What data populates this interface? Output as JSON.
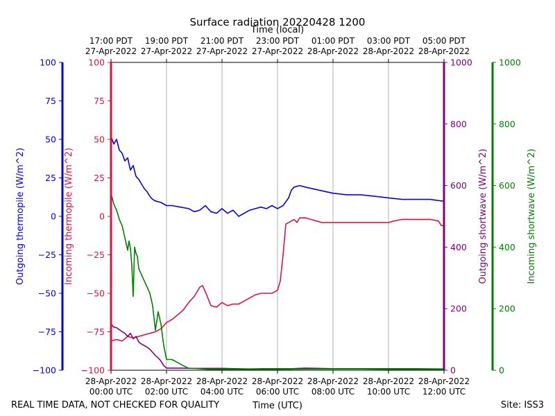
{
  "colors": {
    "outgoing_thermopile": "#0000ee",
    "incoming_thermopile": "#dc143c",
    "outgoing_shortwave": "#800080",
    "incoming_shortwave": "#008000",
    "grid": "#b0b0b0"
  },
  "footer": {
    "disclaimer": "REAL TIME DATA, NOT CHECKED FOR QUALITY",
    "site": "Site: ISS3"
  },
  "chart_data": {
    "type": "line",
    "title": "Surface radiation 20220428 1200",
    "xlabel": "Time (UTC)",
    "xlabel_top": "Time (local)",
    "xlim": [
      0,
      12
    ],
    "x_unit": "hours since 28-Apr-2022 00:00 UTC",
    "ticks_bottom": [
      {
        "x": 0,
        "line1": "28-Apr-2022",
        "line2": "00:00 UTC"
      },
      {
        "x": 2,
        "line1": "28-Apr-2022",
        "line2": "02:00 UTC"
      },
      {
        "x": 4,
        "line1": "28-Apr-2022",
        "line2": "04:00 UTC"
      },
      {
        "x": 6,
        "line1": "28-Apr-2022",
        "line2": "06:00 UTC"
      },
      {
        "x": 8,
        "line1": "28-Apr-2022",
        "line2": "08:00 UTC"
      },
      {
        "x": 10,
        "line1": "28-Apr-2022",
        "line2": "10:00 UTC"
      },
      {
        "x": 12,
        "line1": "28-Apr-2022",
        "line2": "12:00 UTC"
      }
    ],
    "ticks_top": [
      {
        "x": 0,
        "line1": "17:00 PDT",
        "line2": "27-Apr-2022"
      },
      {
        "x": 2,
        "line1": "19:00 PDT",
        "line2": "27-Apr-2022"
      },
      {
        "x": 4,
        "line1": "21:00 PDT",
        "line2": "27-Apr-2022"
      },
      {
        "x": 6,
        "line1": "23:00 PDT",
        "line2": "27-Apr-2022"
      },
      {
        "x": 8,
        "line1": "01:00 PDT",
        "line2": "28-Apr-2022"
      },
      {
        "x": 10,
        "line1": "03:00 PDT",
        "line2": "28-Apr-2022"
      },
      {
        "x": 12,
        "line1": "05:00 PDT",
        "line2": "28-Apr-2022"
      }
    ],
    "axes": [
      {
        "id": "outgoing_thermopile",
        "label": "Outgoing thermopile (W/m^2)",
        "ylim": [
          -100,
          100
        ],
        "ticks": [
          -100,
          -75,
          -50,
          -25,
          0,
          25,
          50,
          75,
          100
        ]
      },
      {
        "id": "incoming_thermopile",
        "label": "Incoming thermopile (W/m^2)",
        "ylim": [
          -100,
          100
        ],
        "ticks": [
          -100,
          -75,
          -50,
          -25,
          0,
          25,
          50,
          75,
          100
        ]
      },
      {
        "id": "outgoing_shortwave",
        "label": "Outgoing shortwave (W/m^2)",
        "ylim": [
          0,
          1000
        ],
        "ticks": [
          0,
          200,
          400,
          600,
          800,
          1000
        ]
      },
      {
        "id": "incoming_shortwave",
        "label": "Incoming shortwave (W/m^2)",
        "ylim": [
          0,
          1000
        ],
        "ticks": [
          0,
          200,
          400,
          600,
          800,
          1000
        ]
      }
    ],
    "series": [
      {
        "name": "Outgoing thermopile",
        "axis": "outgoing_thermopile",
        "x": [
          0,
          0.1,
          0.2,
          0.3,
          0.4,
          0.5,
          0.6,
          0.7,
          0.8,
          0.9,
          1.0,
          1.1,
          1.2,
          1.3,
          1.4,
          1.5,
          1.6,
          1.8,
          2.0,
          2.2,
          2.5,
          2.8,
          3.0,
          3.2,
          3.4,
          3.6,
          3.8,
          4.0,
          4.2,
          4.4,
          4.6,
          4.8,
          5.0,
          5.2,
          5.4,
          5.6,
          5.8,
          6.0,
          6.2,
          6.4,
          6.5,
          6.6,
          6.8,
          7.0,
          7.5,
          8.0,
          8.5,
          9.0,
          9.5,
          10.0,
          10.5,
          11.0,
          11.5,
          11.9,
          12.0
        ],
        "values": [
          52,
          47,
          50,
          43,
          41,
          36,
          38,
          30,
          33,
          26,
          24,
          21,
          18,
          16,
          13,
          11,
          10,
          9,
          7,
          7,
          6,
          5,
          3,
          4,
          7,
          3,
          2,
          5,
          2,
          4,
          0,
          2,
          4,
          5,
          6,
          5,
          7,
          5,
          7,
          12,
          17,
          19,
          20,
          19,
          17,
          15,
          14,
          14,
          13,
          12,
          11,
          11,
          11,
          10,
          10
        ]
      },
      {
        "name": "Incoming thermopile",
        "axis": "incoming_thermopile",
        "x": [
          0,
          0.2,
          0.4,
          0.6,
          0.8,
          1.0,
          1.2,
          1.4,
          1.6,
          1.8,
          2.0,
          2.2,
          2.4,
          2.6,
          2.8,
          3.0,
          3.2,
          3.3,
          3.4,
          3.6,
          3.8,
          4.0,
          4.2,
          4.4,
          4.6,
          4.8,
          5.0,
          5.2,
          5.4,
          5.6,
          5.8,
          6.0,
          6.1,
          6.2,
          6.3,
          6.4,
          6.5,
          6.6,
          6.7,
          6.8,
          7.0,
          7.2,
          7.4,
          7.6,
          8.0,
          8.5,
          9.0,
          9.5,
          10.0,
          10.2,
          10.5,
          11.0,
          11.5,
          11.8,
          11.9,
          12.0
        ],
        "values": [
          -81,
          -80,
          -81,
          -78,
          -79,
          -78,
          -77,
          -76,
          -75,
          -73,
          -69,
          -67,
          -64,
          -61,
          -56,
          -52,
          -46,
          -45,
          -49,
          -58,
          -59,
          -56,
          -58,
          -57,
          -57,
          -55,
          -53,
          -51,
          -50,
          -50,
          -50,
          -48,
          -42,
          -25,
          -5,
          -4,
          -3,
          -2,
          -4,
          -1,
          -1,
          -2,
          -3,
          -4,
          -4,
          -4,
          -4,
          -4,
          -4,
          -3,
          -2,
          -2,
          -2,
          -3,
          -6,
          -6
        ]
      },
      {
        "name": "Outgoing shortwave",
        "axis": "outgoing_shortwave",
        "x": [
          0,
          0.1,
          0.2,
          0.3,
          0.4,
          0.5,
          0.6,
          0.7,
          0.8,
          0.9,
          1.0,
          1.1,
          1.2,
          1.3,
          1.4,
          1.5,
          1.6,
          1.7,
          1.8,
          1.9,
          2.0,
          2.5,
          3.0,
          3.5,
          4.0,
          4.5,
          5.0,
          5.5,
          6.0,
          6.5,
          7.0,
          7.5,
          8.0,
          9.0,
          10.0,
          11.0,
          12.0
        ],
        "values": [
          150,
          140,
          138,
          132,
          125,
          120,
          110,
          120,
          102,
          110,
          92,
          85,
          80,
          75,
          68,
          58,
          48,
          40,
          30,
          15,
          7,
          7,
          6,
          6,
          6,
          5,
          4,
          5,
          5,
          5,
          7,
          6,
          5,
          5,
          5,
          5,
          4
        ]
      },
      {
        "name": "Incoming shortwave",
        "axis": "incoming_shortwave",
        "x": [
          0,
          0.1,
          0.2,
          0.3,
          0.4,
          0.5,
          0.6,
          0.65,
          0.7,
          0.75,
          0.8,
          0.85,
          0.9,
          0.95,
          1.0,
          1.05,
          1.1,
          1.2,
          1.3,
          1.4,
          1.5,
          1.6,
          1.7,
          1.8,
          1.9,
          2.0,
          2.2,
          2.4,
          2.6,
          2.8,
          3.0,
          3.5,
          4.0,
          5.0,
          6.0,
          7.0,
          8.0,
          9.0,
          10.0,
          12.0
        ],
        "values": [
          575,
          540,
          520,
          490,
          470,
          430,
          390,
          420,
          395,
          340,
          240,
          400,
          380,
          370,
          330,
          320,
          310,
          290,
          270,
          250,
          210,
          130,
          190,
          150,
          80,
          35,
          35,
          25,
          15,
          6,
          6,
          3,
          3,
          3,
          3,
          4,
          4,
          4,
          3,
          3
        ]
      }
    ]
  }
}
